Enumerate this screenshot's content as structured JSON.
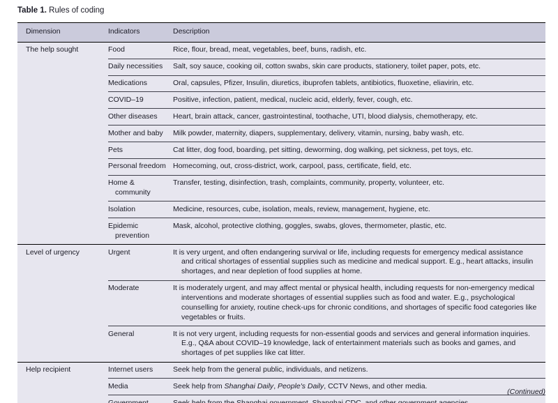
{
  "title": {
    "label": "Table 1.",
    "text": "Rules of coding"
  },
  "continued_note": "(Continued)",
  "colors": {
    "page_bg": "#ffffff",
    "table_bg": "#e7e6ef",
    "header_bg": "#cbcbdc",
    "border_strong": "#000000",
    "row_separator": "#3f3f4a",
    "text": "#1b1b26"
  },
  "table": {
    "columns": [
      "Dimension",
      "Indicators",
      "Description"
    ],
    "sections": [
      {
        "dimension": "The help sought",
        "rows": [
          {
            "indicator": "Food",
            "description": "Rice, flour, bread, meat, vegetables, beef, buns, radish, etc."
          },
          {
            "indicator": "Daily necessities",
            "description": "Salt, soy sauce, cooking oil, cotton swabs, skin care products, stationery, toilet paper, pots, etc."
          },
          {
            "indicator": "Medications",
            "description": "Oral, capsules, Pfizer, Insulin, diuretics, ibuprofen tablets, antibiotics, fluoxetine, eliavirin, etc."
          },
          {
            "indicator": "COVID–19",
            "description": "Positive, infection, patient, medical, nucleic acid, elderly, fever, cough, etc."
          },
          {
            "indicator": "Other diseases",
            "description": "Heart, brain attack, cancer, gastrointestinal, toothache, UTI, blood dialysis, chemotherapy, etc."
          },
          {
            "indicator": "Mother and baby",
            "description": "Milk powder, maternity, diapers, supplementary, delivery, vitamin, nursing, baby wash, etc."
          },
          {
            "indicator": "Pets",
            "description": "Cat litter, dog food, boarding, pet sitting, deworming, dog walking, pet sickness, pet toys, etc."
          },
          {
            "indicator": "Personal freedom",
            "description": "Homecoming, out, cross-district, work, carpool, pass, certificate, field, etc."
          },
          {
            "indicator": "Home & community",
            "description": "Transfer, testing, disinfection, trash, complaints, community, property, volunteer, etc."
          },
          {
            "indicator": "Isolation",
            "description": "Medicine, resources, cube, isolation, meals, review, management, hygiene, etc."
          },
          {
            "indicator": "Epidemic prevention",
            "description": "Mask, alcohol, protective clothing, goggles, swabs, gloves, thermometer, plastic, etc."
          }
        ]
      },
      {
        "dimension": "Level of urgency",
        "rows": [
          {
            "indicator": "Urgent",
            "description": "It is very urgent, and often endangering survival or life, including requests for emergency medical assistance and critical shortages of essential supplies such as medicine and medical support. E.g., heart attacks, insulin shortages, and near depletion of food supplies at home."
          },
          {
            "indicator": "Moderate",
            "description": "It is moderately urgent, and may affect mental or physical health, including requests for non-emergency medical interventions and moderate shortages of essential supplies such as food and water. E.g., psychological counselling for anxiety, routine check-ups for chronic conditions, and shortages of specific food categories like vegetables or fruits."
          },
          {
            "indicator": "General",
            "description": "It is not very urgent, including requests for non-essential goods and services and general information inquiries. E.g., Q&A about COVID–19 knowledge, lack of entertainment materials such as books and games, and shortages of pet supplies like cat litter."
          }
        ]
      },
      {
        "dimension": "Help recipient",
        "rows": [
          {
            "indicator": "Internet users",
            "description": "Seek help from the general public, individuals, and netizens."
          },
          {
            "indicator": "Media",
            "description": [
              {
                "t": "Seek help from "
              },
              {
                "t": "Shanghai Daily",
                "i": true
              },
              {
                "t": ", "
              },
              {
                "t": "People's Daily",
                "i": true
              },
              {
                "t": ", CCTV News, and other media."
              }
            ]
          },
          {
            "indicator": "Government",
            "description": "Seek help from the Shanghai government, Shanghai CDC, and other government agencies."
          }
        ]
      }
    ]
  }
}
